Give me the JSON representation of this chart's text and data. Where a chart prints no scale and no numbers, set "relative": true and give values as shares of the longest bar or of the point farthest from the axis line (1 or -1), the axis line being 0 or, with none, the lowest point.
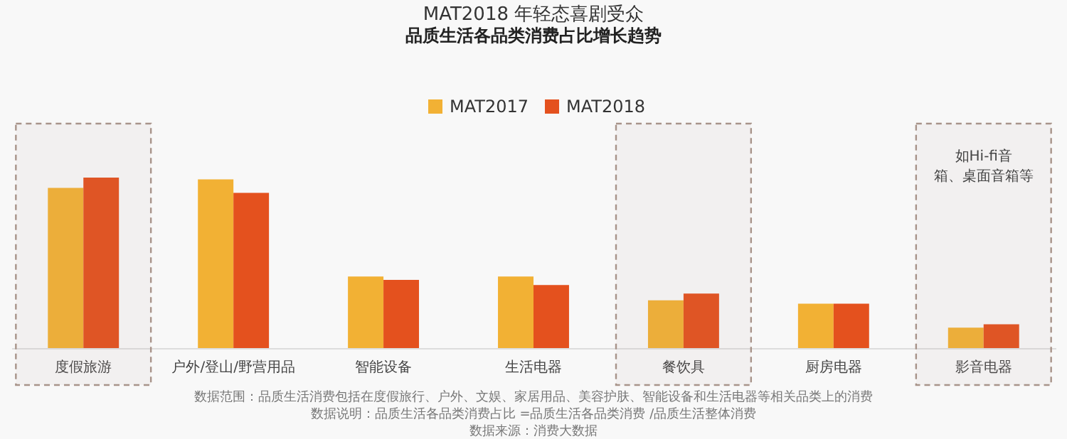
{
  "chart_data": {
    "type": "bar",
    "title": "MAT2018 年轻态喜剧受众",
    "subtitle": "品质生活各品类消费占比增长趋势",
    "relative": true,
    "legend": "top",
    "categories": [
      "度假旅游",
      "户外/登山/野营用品",
      "智能设备",
      "生活电器",
      "餐饮具",
      "厨房电器",
      "影音电器"
    ],
    "series": [
      {
        "name": "MAT2017",
        "color": "#f2b134",
        "values": [
          0.94,
          0.99,
          0.42,
          0.42,
          0.28,
          0.26,
          0.12
        ]
      },
      {
        "name": "MAT2018",
        "color": "#e4511e",
        "values": [
          1,
          0.91,
          0.4,
          0.37,
          0.32,
          0.26,
          0.14
        ]
      }
    ],
    "bands": [
      {
        "axis": "x",
        "from": "度假旅游",
        "to": "度假旅游",
        "color": "#a8948a"
      },
      {
        "axis": "x",
        "from": "餐饮具",
        "to": "餐饮具",
        "color": "#a8948a"
      },
      {
        "axis": "x",
        "from": "影音电器",
        "to": "影音电器",
        "color": "#a8948a",
        "label": "如Hi-fi音箱、桌面音箱等"
      }
    ],
    "annotations": [
      "数据范围：品质生活消费包括在度假旅行、户外、文娱、家居用品、美容护肤、智能设备和生活电器等相关品类上的消费",
      "数据说明：品质生活各品类消费占比 =品质生活各品类消费 /品质生活整体消费",
      "数据来源：消费大数据"
    ]
  }
}
